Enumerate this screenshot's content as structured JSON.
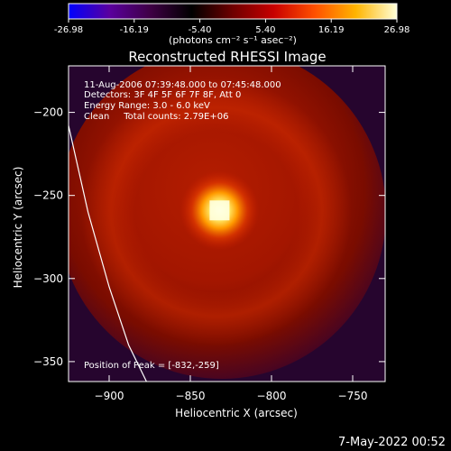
{
  "colorbar": {
    "min_value": -26.98,
    "max_value": 26.98,
    "tick_labels": [
      "-26.98",
      "-16.19",
      "-5.40",
      "5.40",
      "16.19",
      "26.98"
    ],
    "units_label": "(photons cm⁻² s⁻¹ asec⁻²)"
  },
  "chart_data": {
    "type": "heatmap",
    "title": "Reconstructed RHESSI Image",
    "xlabel": "Heliocentric X (arcsec)",
    "ylabel": "Heliocentric Y (arcsec)",
    "xlim": [
      -925,
      -730
    ],
    "ylim": [
      -362,
      -172
    ],
    "x_ticks": [
      -900,
      -850,
      -800,
      -750
    ],
    "y_ticks": [
      -200,
      -250,
      -300,
      -350
    ],
    "x_tick_labels": [
      "−900",
      "−850",
      "−800",
      "−750"
    ],
    "y_tick_labels": [
      "−200",
      "−250",
      "−300",
      "−350"
    ],
    "peak": [
      -832,
      -259
    ],
    "annotations": {
      "time": "11-Aug-2006 07:39:48.000 to 07:45:48.000",
      "detectors": "Detectors: 3F 4F 5F 6F 7F 8F, Att 0",
      "energy": "Energy Range: 3.0 - 6.0 keV",
      "clean": "Clean     Total counts: 2.79E+06",
      "peak_label": "Position of Peak = [-832,-259]"
    },
    "limb_curve": [
      [
        -925,
        -208
      ],
      [
        -913,
        -260
      ],
      [
        -900,
        -305
      ],
      [
        -888,
        -340
      ],
      [
        -877,
        -362
      ]
    ],
    "colormap": [
      "#0000ff",
      "#5a009e",
      "#3e0044",
      "#000000",
      "#6e0000",
      "#c80000",
      "#ff5000",
      "#ffb400",
      "#ffffd8"
    ]
  },
  "footer": {
    "timestamp": "7-May-2022 00:52"
  }
}
